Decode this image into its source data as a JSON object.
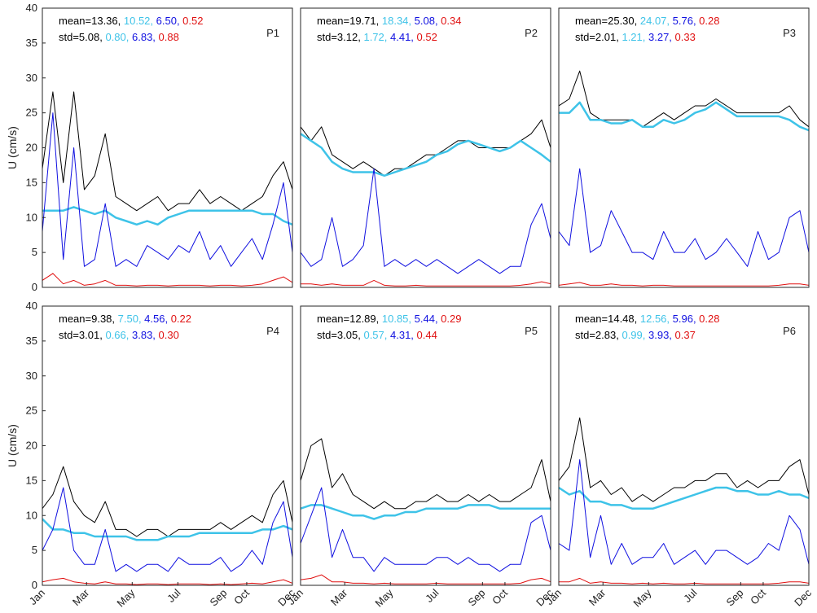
{
  "chart_data": [
    {
      "type": "line",
      "title": "P1",
      "ylabel": "U (cm/s)",
      "stats": [
        [
          "mean=13.36, ",
          "10.52, ",
          "6.50, ",
          "0.52"
        ],
        [
          "std=5.08, ",
          "0.80, ",
          "6.83, ",
          "0.88"
        ]
      ],
      "x": [
        1,
        15,
        29,
        43,
        57,
        71,
        85,
        99,
        113,
        127,
        141,
        155,
        169,
        183,
        197,
        211,
        225,
        239,
        253,
        267,
        281,
        295,
        309,
        323,
        335
      ],
      "xlim": [
        1,
        335
      ],
      "ylim": [
        0,
        40
      ],
      "yticks": [
        0,
        5,
        10,
        15,
        20,
        25,
        30,
        35,
        40
      ],
      "series": [
        {
          "color": "#000000",
          "width": 1,
          "values": [
            17,
            28,
            15,
            28,
            14,
            16,
            22,
            13,
            12,
            11,
            12,
            13,
            11,
            12,
            12,
            14,
            12,
            13,
            12,
            11,
            12,
            13,
            16,
            18,
            14
          ]
        },
        {
          "color": "#3ec3e8",
          "width": 2.5,
          "values": [
            11,
            11,
            11,
            11.5,
            11,
            10.5,
            11,
            10,
            9.5,
            9,
            9.5,
            9,
            10,
            10.5,
            11,
            11,
            11,
            11,
            11,
            11,
            11,
            10.5,
            10.5,
            9.5,
            9
          ]
        },
        {
          "color": "#1010e0",
          "width": 1,
          "values": [
            8,
            25,
            4,
            20,
            3,
            4,
            12,
            3,
            4,
            3,
            6,
            5,
            4,
            6,
            5,
            8,
            4,
            6,
            3,
            5,
            7,
            4,
            9,
            15,
            5
          ]
        },
        {
          "color": "#e01010",
          "width": 1,
          "values": [
            1,
            2,
            0.5,
            1,
            0.3,
            0.5,
            1,
            0.3,
            0.3,
            0.2,
            0.3,
            0.3,
            0.2,
            0.3,
            0.3,
            0.3,
            0.2,
            0.3,
            0.3,
            0.2,
            0.3,
            0.5,
            1,
            1.5,
            0.7
          ]
        }
      ]
    },
    {
      "type": "line",
      "title": "P2",
      "stats": [
        [
          "mean=19.71, ",
          "18.34, ",
          "5.08, ",
          "0.34"
        ],
        [
          "std=3.12, ",
          "1.72, ",
          "4.41, ",
          "0.52"
        ]
      ],
      "x": [
        1,
        15,
        29,
        43,
        57,
        71,
        85,
        99,
        113,
        127,
        141,
        155,
        169,
        183,
        197,
        211,
        225,
        239,
        253,
        267,
        281,
        295,
        309,
        323,
        335
      ],
      "xlim": [
        1,
        335
      ],
      "ylim": [
        0,
        40
      ],
      "series": [
        {
          "color": "#000000",
          "width": 1,
          "values": [
            23,
            21,
            23,
            19,
            18,
            17,
            18,
            17,
            16,
            17,
            17,
            18,
            19,
            19,
            20,
            21,
            21,
            20,
            20,
            20,
            20,
            21,
            22,
            24,
            20
          ]
        },
        {
          "color": "#3ec3e8",
          "width": 2.5,
          "values": [
            22,
            21,
            20,
            18,
            17,
            16.5,
            16.5,
            16.5,
            16,
            16.5,
            17,
            17.5,
            18,
            19,
            19.5,
            20.5,
            21,
            20.5,
            20,
            19.5,
            20,
            21,
            20,
            19,
            18
          ]
        },
        {
          "color": "#1010e0",
          "width": 1,
          "values": [
            5,
            3,
            4,
            10,
            3,
            4,
            6,
            17,
            3,
            4,
            3,
            4,
            3,
            4,
            3,
            2,
            3,
            4,
            3,
            2,
            3,
            3,
            9,
            12,
            7
          ]
        },
        {
          "color": "#e01010",
          "width": 1,
          "values": [
            0.5,
            0.5,
            0.3,
            0.5,
            0.3,
            0.3,
            0.3,
            1,
            0.3,
            0.2,
            0.2,
            0.3,
            0.2,
            0.2,
            0.2,
            0.2,
            0.2,
            0.2,
            0.2,
            0.2,
            0.2,
            0.3,
            0.5,
            0.8,
            0.5
          ]
        }
      ]
    },
    {
      "type": "line",
      "title": "P3",
      "stats": [
        [
          "mean=25.30, ",
          "24.07, ",
          "5.76, ",
          "0.28"
        ],
        [
          "std=2.01, ",
          "1.21, ",
          "3.27, ",
          "0.33"
        ]
      ],
      "x": [
        1,
        15,
        29,
        43,
        57,
        71,
        85,
        99,
        113,
        127,
        141,
        155,
        169,
        183,
        197,
        211,
        225,
        239,
        253,
        267,
        281,
        295,
        309,
        323,
        335
      ],
      "xlim": [
        1,
        335
      ],
      "ylim": [
        0,
        40
      ],
      "series": [
        {
          "color": "#000000",
          "width": 1,
          "values": [
            26,
            27,
            31,
            25,
            24,
            24,
            24,
            24,
            23,
            24,
            25,
            24,
            25,
            26,
            26,
            27,
            26,
            25,
            25,
            25,
            25,
            25,
            26,
            24,
            23
          ]
        },
        {
          "color": "#3ec3e8",
          "width": 2.5,
          "values": [
            25,
            25,
            26.5,
            24,
            24,
            23.5,
            23.5,
            24,
            23,
            23,
            24,
            23.5,
            24,
            25,
            25.5,
            26.5,
            25.5,
            24.5,
            24.5,
            24.5,
            24.5,
            24.5,
            24,
            23,
            22.5
          ]
        },
        {
          "color": "#1010e0",
          "width": 1,
          "values": [
            8,
            6,
            17,
            5,
            6,
            11,
            8,
            5,
            5,
            4,
            8,
            5,
            5,
            7,
            4,
            5,
            7,
            5,
            3,
            8,
            4,
            5,
            10,
            11,
            5
          ]
        },
        {
          "color": "#e01010",
          "width": 1,
          "values": [
            0.3,
            0.5,
            0.7,
            0.3,
            0.3,
            0.5,
            0.3,
            0.3,
            0.2,
            0.3,
            0.3,
            0.2,
            0.2,
            0.2,
            0.2,
            0.2,
            0.2,
            0.2,
            0.2,
            0.2,
            0.2,
            0.3,
            0.5,
            0.5,
            0.3
          ]
        }
      ]
    },
    {
      "type": "line",
      "title": "P4",
      "ylabel": "U (cm/s)",
      "stats": [
        [
          "mean=9.38, ",
          "7.50, ",
          "4.56, ",
          "0.22"
        ],
        [
          "std=3.01, ",
          "0.66, ",
          "3.83, ",
          "0.30"
        ]
      ],
      "x": [
        1,
        15,
        29,
        43,
        57,
        71,
        85,
        99,
        113,
        127,
        141,
        155,
        169,
        183,
        197,
        211,
        225,
        239,
        253,
        267,
        281,
        295,
        309,
        323,
        335
      ],
      "xlim": [
        1,
        335
      ],
      "ylim": [
        0,
        40
      ],
      "yticks": [
        0,
        5,
        10,
        15,
        20,
        25,
        30,
        35,
        40
      ],
      "xticks": [
        {
          "value": 1,
          "label": "Jan"
        },
        {
          "value": 60,
          "label": "Mar"
        },
        {
          "value": 121,
          "label": "May"
        },
        {
          "value": 182,
          "label": "Jul"
        },
        {
          "value": 244,
          "label": "Sep"
        },
        {
          "value": 274,
          "label": "Oct"
        },
        {
          "value": 335,
          "label": "Dec"
        }
      ],
      "series": [
        {
          "color": "#000000",
          "width": 1,
          "values": [
            11,
            13,
            17,
            12,
            10,
            9,
            12,
            8,
            8,
            7,
            8,
            8,
            7,
            8,
            8,
            8,
            8,
            9,
            8,
            9,
            10,
            9,
            13,
            15,
            9
          ]
        },
        {
          "color": "#3ec3e8",
          "width": 2.5,
          "values": [
            9.5,
            8,
            8,
            7.5,
            7.5,
            7,
            7,
            7,
            7,
            6.5,
            6.5,
            6.5,
            7,
            7,
            7,
            7.5,
            7.5,
            7.5,
            7.5,
            7.5,
            7.5,
            8,
            8,
            8.5,
            8
          ]
        },
        {
          "color": "#1010e0",
          "width": 1,
          "values": [
            5,
            8,
            14,
            5,
            3,
            3,
            8,
            2,
            3,
            2,
            3,
            3,
            2,
            4,
            3,
            3,
            3,
            4,
            2,
            3,
            5,
            3,
            9,
            12,
            4
          ]
        },
        {
          "color": "#e01010",
          "width": 1,
          "values": [
            0.5,
            0.8,
            1,
            0.5,
            0.3,
            0.2,
            0.5,
            0.2,
            0.2,
            0.1,
            0.2,
            0.2,
            0.1,
            0.2,
            0.2,
            0.2,
            0.1,
            0.2,
            0.1,
            0.2,
            0.3,
            0.2,
            0.5,
            0.8,
            0.3
          ]
        }
      ]
    },
    {
      "type": "line",
      "title": "P5",
      "stats": [
        [
          "mean=12.89, ",
          "10.85, ",
          "5.44, ",
          "0.29"
        ],
        [
          "std=3.05, ",
          "0.57, ",
          "4.31, ",
          "0.44"
        ]
      ],
      "x": [
        1,
        15,
        29,
        43,
        57,
        71,
        85,
        99,
        113,
        127,
        141,
        155,
        169,
        183,
        197,
        211,
        225,
        239,
        253,
        267,
        281,
        295,
        309,
        323,
        335
      ],
      "xlim": [
        1,
        335
      ],
      "ylim": [
        0,
        40
      ],
      "xticks": [
        {
          "value": 1,
          "label": "Jan"
        },
        {
          "value": 60,
          "label": "Mar"
        },
        {
          "value": 121,
          "label": "May"
        },
        {
          "value": 182,
          "label": "Jul"
        },
        {
          "value": 244,
          "label": "Sep"
        },
        {
          "value": 274,
          "label": "Oct"
        },
        {
          "value": 335,
          "label": "Dec"
        }
      ],
      "series": [
        {
          "color": "#000000",
          "width": 1,
          "values": [
            15,
            20,
            21,
            14,
            16,
            13,
            12,
            11,
            12,
            11,
            11,
            12,
            12,
            13,
            12,
            12,
            13,
            12,
            13,
            12,
            12,
            13,
            14,
            18,
            12
          ]
        },
        {
          "color": "#3ec3e8",
          "width": 2.5,
          "values": [
            11,
            11.5,
            11.5,
            11,
            10.5,
            10,
            10,
            9.5,
            10,
            10,
            10.5,
            10.5,
            11,
            11,
            11,
            11,
            11.5,
            11.5,
            11.5,
            11,
            11,
            11,
            11,
            11,
            11
          ]
        },
        {
          "color": "#1010e0",
          "width": 1,
          "values": [
            6,
            10,
            14,
            4,
            8,
            4,
            4,
            2,
            4,
            3,
            3,
            3,
            3,
            4,
            4,
            3,
            4,
            3,
            3,
            2,
            3,
            3,
            9,
            10,
            5
          ]
        },
        {
          "color": "#e01010",
          "width": 1,
          "values": [
            0.8,
            1,
            1.5,
            0.5,
            0.5,
            0.3,
            0.3,
            0.2,
            0.3,
            0.2,
            0.2,
            0.2,
            0.2,
            0.3,
            0.2,
            0.2,
            0.2,
            0.2,
            0.2,
            0.2,
            0.2,
            0.3,
            0.8,
            1,
            0.5
          ]
        }
      ]
    },
    {
      "type": "line",
      "title": "P6",
      "stats": [
        [
          "mean=14.48, ",
          "12.56, ",
          "5.96, ",
          "0.28"
        ],
        [
          "std=2.83, ",
          "0.99, ",
          "3.93, ",
          "0.37"
        ]
      ],
      "x": [
        1,
        15,
        29,
        43,
        57,
        71,
        85,
        99,
        113,
        127,
        141,
        155,
        169,
        183,
        197,
        211,
        225,
        239,
        253,
        267,
        281,
        295,
        309,
        323,
        335
      ],
      "xlim": [
        1,
        335
      ],
      "ylim": [
        0,
        40
      ],
      "xticks": [
        {
          "value": 1,
          "label": "Jan"
        },
        {
          "value": 60,
          "label": "Mar"
        },
        {
          "value": 121,
          "label": "May"
        },
        {
          "value": 182,
          "label": "Jul"
        },
        {
          "value": 244,
          "label": "Sep"
        },
        {
          "value": 274,
          "label": "Oct"
        },
        {
          "value": 335,
          "label": "Dec"
        }
      ],
      "series": [
        {
          "color": "#000000",
          "width": 1,
          "values": [
            15,
            17,
            24,
            14,
            15,
            13,
            14,
            12,
            13,
            12,
            13,
            14,
            14,
            15,
            15,
            16,
            16,
            14,
            15,
            14,
            15,
            15,
            17,
            18,
            13
          ]
        },
        {
          "color": "#3ec3e8",
          "width": 2.5,
          "values": [
            14,
            13,
            13.5,
            12,
            12,
            11.5,
            11.5,
            11,
            11,
            11,
            11.5,
            12,
            12.5,
            13,
            13.5,
            14,
            14,
            13.5,
            13.5,
            13,
            13,
            13.5,
            13,
            13,
            12.5
          ]
        },
        {
          "color": "#1010e0",
          "width": 1,
          "values": [
            6,
            5,
            18,
            4,
            10,
            3,
            6,
            3,
            4,
            4,
            6,
            3,
            4,
            5,
            3,
            5,
            5,
            4,
            3,
            4,
            6,
            5,
            10,
            8,
            3
          ]
        },
        {
          "color": "#e01010",
          "width": 1,
          "values": [
            0.5,
            0.5,
            1,
            0.3,
            0.5,
            0.3,
            0.3,
            0.2,
            0.3,
            0.2,
            0.3,
            0.2,
            0.2,
            0.3,
            0.2,
            0.2,
            0.2,
            0.2,
            0.2,
            0.2,
            0.2,
            0.3,
            0.5,
            0.5,
            0.3
          ]
        }
      ]
    }
  ]
}
